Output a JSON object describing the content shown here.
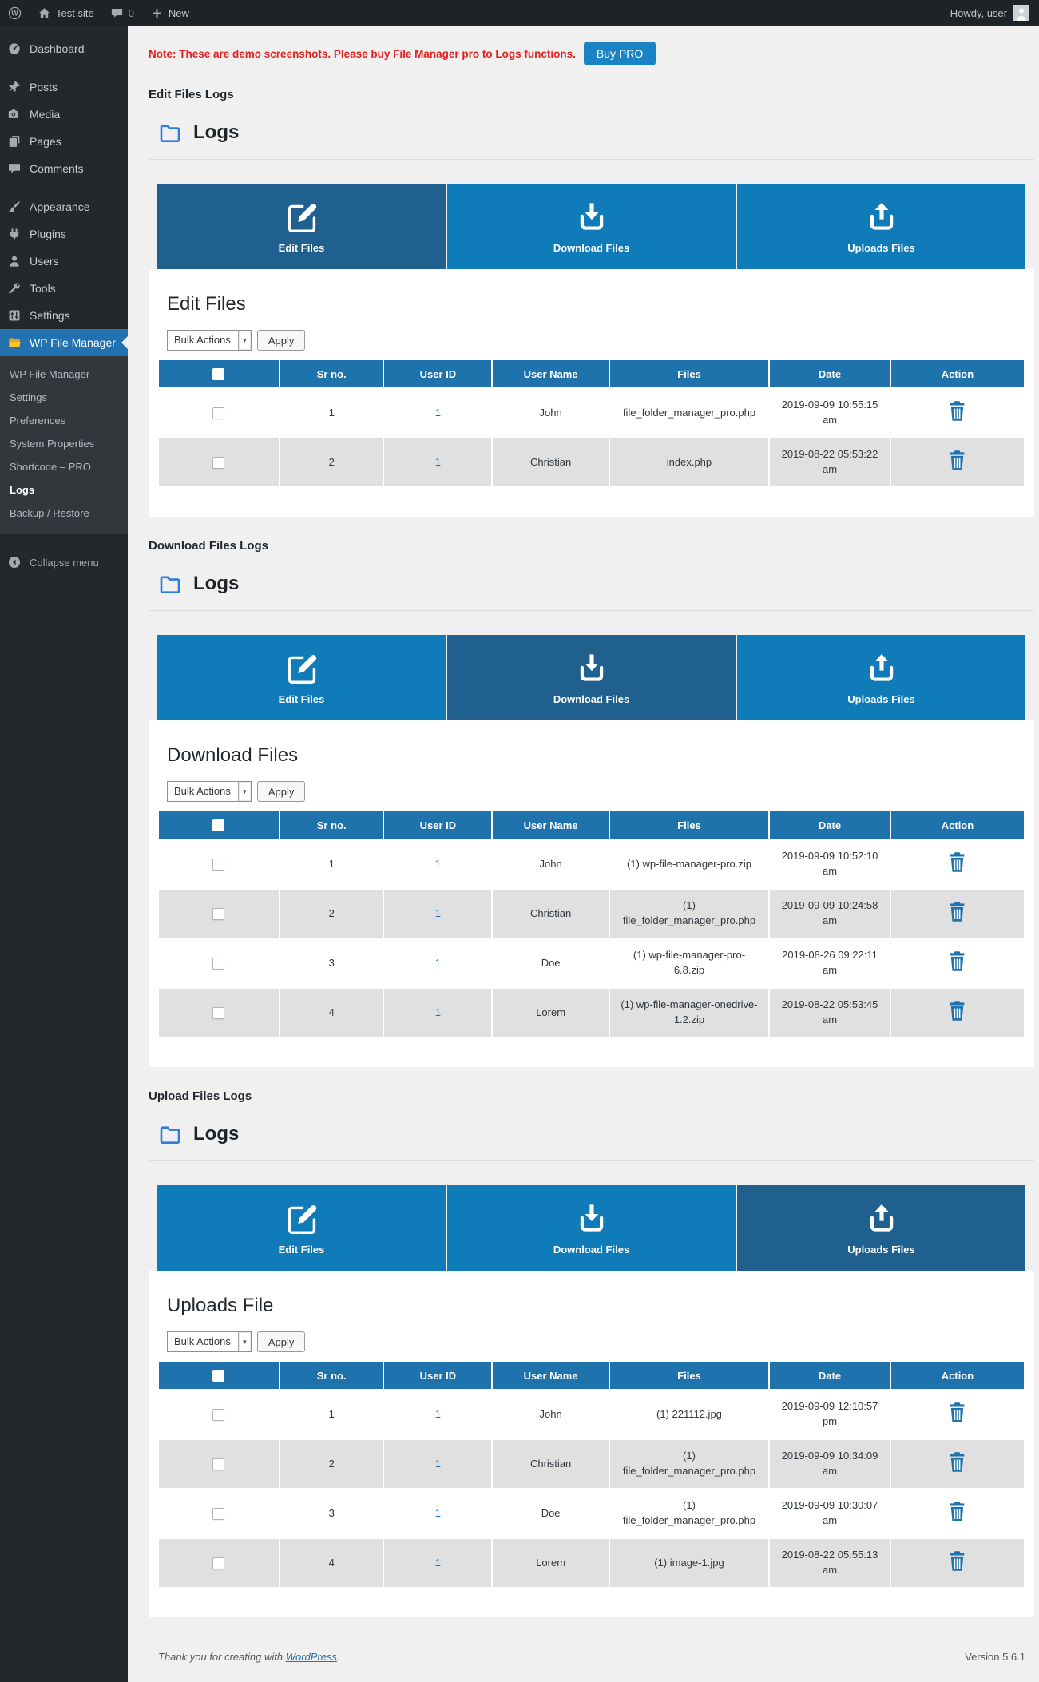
{
  "admin_bar": {
    "site_name": "Test site",
    "comment_count": "0",
    "new_label": "New",
    "howdy_text": "Howdy, user"
  },
  "sidebar": {
    "menu": [
      {
        "label": "Dashboard",
        "icon": "dashboard-icon"
      },
      {
        "label": "Posts",
        "icon": "pushpin-icon",
        "separator_before": true
      },
      {
        "label": "Media",
        "icon": "media-icon"
      },
      {
        "label": "Pages",
        "icon": "pages-icon"
      },
      {
        "label": "Comments",
        "icon": "comments-icon"
      },
      {
        "label": "Appearance",
        "icon": "appearance-icon",
        "separator_before": true
      },
      {
        "label": "Plugins",
        "icon": "plugin-icon"
      },
      {
        "label": "Users",
        "icon": "users-icon"
      },
      {
        "label": "Tools",
        "icon": "tools-icon"
      },
      {
        "label": "Settings",
        "icon": "settings-icon"
      }
    ],
    "file_manager": {
      "label": "WP File Manager",
      "icon": "folder-icon",
      "submenu": [
        "WP File Manager",
        "Settings",
        "Preferences",
        "System Properties",
        "Shortcode – PRO",
        "Logs",
        "Backup / Restore"
      ],
      "active_item": "Logs"
    },
    "collapse_label": "Collapse menu"
  },
  "notice": {
    "text": "Note: These are demo screenshots. Please buy File Manager pro to Logs functions.",
    "button_label": "Buy PRO"
  },
  "logs_title": "Logs",
  "tabs": [
    {
      "label": "Edit Files",
      "icon": "edit-icon"
    },
    {
      "label": "Download Files",
      "icon": "download-icon"
    },
    {
      "label": "Uploads Files",
      "icon": "upload-icon"
    }
  ],
  "bulk_actions_label": "Bulk Actions",
  "apply_label": "Apply",
  "table_columns": [
    "Sr no.",
    "User ID",
    "User Name",
    "Files",
    "Date",
    "Action"
  ],
  "sections": [
    {
      "heading": "Edit Files Logs",
      "active_tab": 0,
      "panel_title": "Edit Files",
      "rows": [
        {
          "sr": "1",
          "user_id": "1",
          "user_name": "John",
          "files": "file_folder_manager_pro.php",
          "date": "2019-09-09 10:55:15 am"
        },
        {
          "sr": "2",
          "user_id": "1",
          "user_name": "Christian",
          "files": "index.php",
          "date": "2019-08-22 05:53:22 am"
        }
      ]
    },
    {
      "heading": "Download Files Logs",
      "active_tab": 1,
      "panel_title": "Download Files",
      "rows": [
        {
          "sr": "1",
          "user_id": "1",
          "user_name": "John",
          "files": "(1) wp-file-manager-pro.zip",
          "date": "2019-09-09 10:52:10 am"
        },
        {
          "sr": "2",
          "user_id": "1",
          "user_name": "Christian",
          "files": "(1) file_folder_manager_pro.php",
          "date": "2019-09-09 10:24:58 am"
        },
        {
          "sr": "3",
          "user_id": "1",
          "user_name": "Doe",
          "files": "(1) wp-file-manager-pro-6.8.zip",
          "date": "2019-08-26 09:22:11 am"
        },
        {
          "sr": "4",
          "user_id": "1",
          "user_name": "Lorem",
          "files": "(1) wp-file-manager-onedrive-1.2.zip",
          "date": "2019-08-22 05:53:45 am"
        }
      ]
    },
    {
      "heading": "Upload Files Logs",
      "active_tab": 2,
      "panel_title": "Uploads File",
      "rows": [
        {
          "sr": "1",
          "user_id": "1",
          "user_name": "John",
          "files": "(1) 221112.jpg",
          "date": "2019-09-09 12:10:57 pm"
        },
        {
          "sr": "2",
          "user_id": "1",
          "user_name": "Christian",
          "files": "(1) file_folder_manager_pro.php",
          "date": "2019-09-09 10:34:09 am"
        },
        {
          "sr": "3",
          "user_id": "1",
          "user_name": "Doe",
          "files": "(1) file_folder_manager_pro.php",
          "date": "2019-09-09 10:30:07 am"
        },
        {
          "sr": "4",
          "user_id": "1",
          "user_name": "Lorem",
          "files": "(1) image-1.jpg",
          "date": "2019-08-22 05:55:13 am"
        }
      ]
    }
  ],
  "footer": {
    "thanks_text": "Thank you for creating with",
    "wordpress_link": "WordPress",
    "period": ".",
    "version": "Version 5.6.1"
  },
  "colors": {
    "accent_blue": "#2271b1",
    "tab_active": "#20608f",
    "tab_inactive": "#0f7bb8",
    "table_header": "#1e73ad",
    "notice_red": "#e32121",
    "buy_pro_button": "#1a83c3",
    "row_alt_gray": "#e0e0e0",
    "link_blue": "#2271b1",
    "logs_folder_icon_blue": "#2d7ce1",
    "trash_icon_blue": "#1f72ad",
    "fm_folder_icon_yellow": "#f7c10f"
  }
}
